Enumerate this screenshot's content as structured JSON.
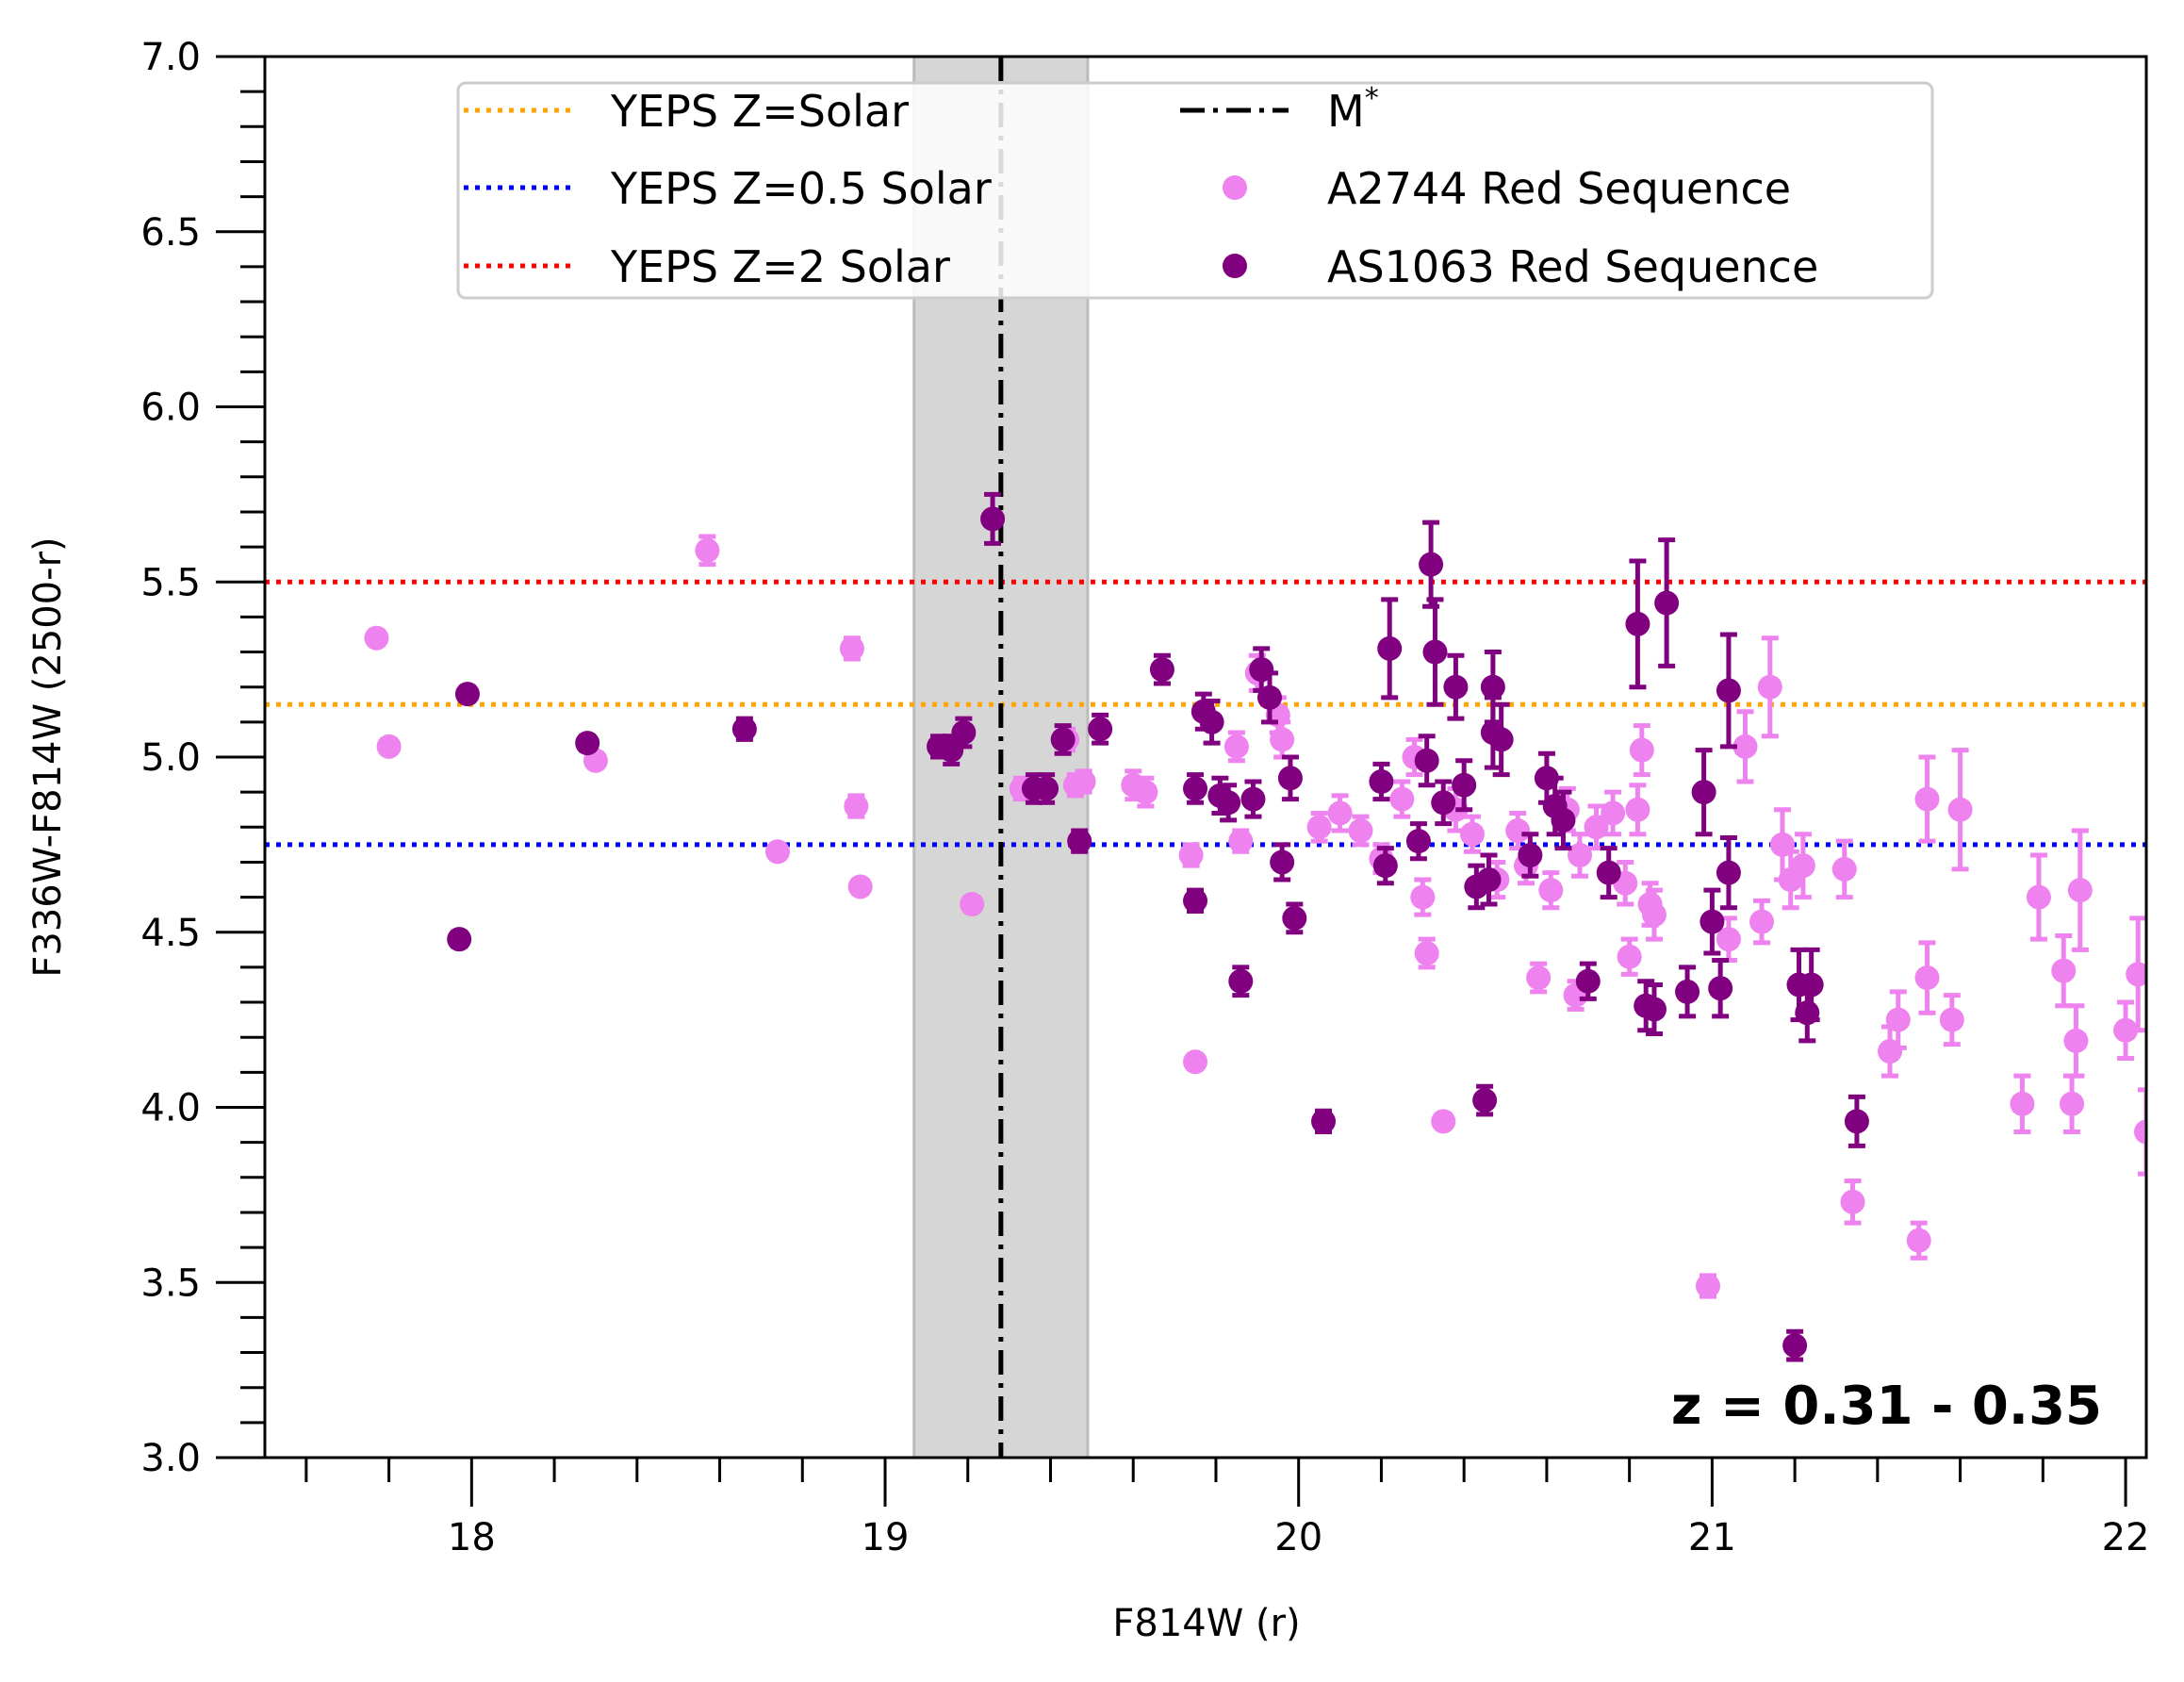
{
  "chart_data": {
    "type": "scatter",
    "xlabel": "F814W (r)",
    "ylabel": "F336W-F814W (2500-r)",
    "xlim": [
      17.5,
      22.05
    ],
    "ylim": [
      3.0,
      7.0
    ],
    "xticks": [
      18,
      19,
      20,
      21,
      22
    ],
    "xtick_labels": [
      "18",
      "19",
      "20",
      "21",
      "22"
    ],
    "yticks": [
      3.0,
      3.5,
      4.0,
      4.5,
      5.0,
      5.5,
      6.0,
      6.5,
      7.0
    ],
    "ytick_labels": [
      "3.0",
      "3.5",
      "4.0",
      "4.5",
      "5.0",
      "5.5",
      "6.0",
      "6.5",
      "7.0"
    ],
    "annotation": "z = 0.31 - 0.35",
    "legend_position": "top-center",
    "hlines": [
      {
        "name": "YEPS Z=Solar",
        "y": 5.15,
        "color": "#ffa500"
      },
      {
        "name": "YEPS Z=0.5 Solar",
        "y": 4.75,
        "color": "#0000ff"
      },
      {
        "name": "YEPS Z=2 Solar",
        "y": 5.5,
        "color": "#ff0000"
      }
    ],
    "vline": {
      "name": "M*",
      "x": 19.28,
      "color": "#000000"
    },
    "vband": {
      "x": [
        19.07,
        19.49
      ],
      "color": "#d6d6d6"
    },
    "series": [
      {
        "name": "A2744 Red Sequence",
        "color": "#ee82ee",
        "points": [
          [
            17.77,
            5.34,
            0.02
          ],
          [
            17.8,
            5.03,
            0.02
          ],
          [
            18.3,
            4.99,
            0.02
          ],
          [
            18.57,
            5.59,
            0.04
          ],
          [
            18.74,
            4.73,
            0.02
          ],
          [
            18.92,
            5.31,
            0.03
          ],
          [
            18.93,
            4.86,
            0.03
          ],
          [
            18.94,
            4.63,
            0.02
          ],
          [
            19.21,
            4.58,
            0.02
          ],
          [
            19.33,
            4.91,
            0.03
          ],
          [
            19.44,
            5.05,
            0.03
          ],
          [
            19.46,
            4.92,
            0.03
          ],
          [
            19.48,
            4.93,
            0.03
          ],
          [
            19.6,
            4.92,
            0.04
          ],
          [
            19.63,
            4.9,
            0.04
          ],
          [
            19.74,
            4.72,
            0.03
          ],
          [
            19.75,
            4.13,
            0.02
          ],
          [
            19.85,
            5.03,
            0.04
          ],
          [
            19.86,
            4.76,
            0.03
          ],
          [
            19.9,
            5.24,
            0.05
          ],
          [
            19.95,
            5.12,
            0.05
          ],
          [
            19.96,
            5.05,
            0.05
          ],
          [
            20.05,
            4.8,
            0.04
          ],
          [
            20.1,
            4.84,
            0.05
          ],
          [
            20.15,
            4.79,
            0.04
          ],
          [
            20.2,
            4.71,
            0.04
          ],
          [
            20.25,
            4.88,
            0.05
          ],
          [
            20.28,
            5.0,
            0.05
          ],
          [
            20.3,
            4.6,
            0.05
          ],
          [
            20.31,
            4.44,
            0.04
          ],
          [
            20.35,
            3.96,
            0.02
          ],
          [
            20.38,
            4.85,
            0.06
          ],
          [
            20.42,
            4.78,
            0.05
          ],
          [
            20.48,
            4.65,
            0.05
          ],
          [
            20.53,
            4.79,
            0.05
          ],
          [
            20.55,
            4.69,
            0.05
          ],
          [
            20.58,
            4.37,
            0.04
          ],
          [
            20.61,
            4.62,
            0.05
          ],
          [
            20.65,
            4.85,
            0.06
          ],
          [
            20.67,
            4.32,
            0.04
          ],
          [
            20.68,
            4.72,
            0.06
          ],
          [
            20.72,
            4.8,
            0.06
          ],
          [
            20.76,
            4.84,
            0.06
          ],
          [
            20.79,
            4.64,
            0.06
          ],
          [
            20.8,
            4.43,
            0.05
          ],
          [
            20.82,
            4.85,
            0.07
          ],
          [
            20.83,
            5.02,
            0.07
          ],
          [
            20.85,
            4.58,
            0.06
          ],
          [
            20.86,
            4.55,
            0.07
          ],
          [
            20.99,
            3.49,
            0.03
          ],
          [
            21.04,
            4.48,
            0.06
          ],
          [
            21.08,
            5.03,
            0.1
          ],
          [
            21.12,
            4.53,
            0.06
          ],
          [
            21.14,
            5.2,
            0.14
          ],
          [
            21.17,
            4.75,
            0.1
          ],
          [
            21.19,
            4.65,
            0.08
          ],
          [
            21.22,
            4.69,
            0.09
          ],
          [
            21.32,
            4.68,
            0.08
          ],
          [
            21.34,
            3.73,
            0.06
          ],
          [
            21.43,
            4.16,
            0.07
          ],
          [
            21.45,
            4.25,
            0.08
          ],
          [
            21.5,
            3.62,
            0.05
          ],
          [
            21.52,
            4.37,
            0.1
          ],
          [
            21.52,
            4.88,
            0.12
          ],
          [
            21.58,
            4.25,
            0.07
          ],
          [
            21.6,
            4.85,
            0.17
          ],
          [
            21.75,
            4.01,
            0.08
          ],
          [
            21.79,
            4.6,
            0.12
          ],
          [
            21.85,
            4.39,
            0.1
          ],
          [
            21.87,
            4.01,
            0.08
          ],
          [
            21.88,
            4.19,
            0.1
          ],
          [
            21.89,
            4.62,
            0.17
          ],
          [
            22.0,
            4.22,
            0.08
          ],
          [
            22.03,
            4.38,
            0.16
          ],
          [
            22.05,
            3.93,
            0.12
          ]
        ]
      },
      {
        "name": "AS1063 Red Sequence",
        "color": "#800080",
        "points": [
          [
            17.97,
            4.48,
            0.02
          ],
          [
            17.99,
            5.18,
            0.02
          ],
          [
            18.28,
            5.04,
            0.02
          ],
          [
            18.66,
            5.08,
            0.03
          ],
          [
            19.13,
            5.03,
            0.03
          ],
          [
            19.16,
            5.02,
            0.04
          ],
          [
            19.19,
            5.07,
            0.04
          ],
          [
            19.26,
            5.68,
            0.07
          ],
          [
            19.36,
            4.91,
            0.04
          ],
          [
            19.39,
            4.91,
            0.04
          ],
          [
            19.43,
            5.05,
            0.04
          ],
          [
            19.47,
            4.76,
            0.03
          ],
          [
            19.52,
            5.08,
            0.04
          ],
          [
            19.67,
            5.25,
            0.04
          ],
          [
            19.75,
            4.59,
            0.03
          ],
          [
            19.75,
            4.91,
            0.04
          ],
          [
            19.77,
            5.13,
            0.05
          ],
          [
            19.79,
            5.1,
            0.06
          ],
          [
            19.81,
            4.89,
            0.05
          ],
          [
            19.83,
            4.87,
            0.05
          ],
          [
            19.86,
            4.36,
            0.04
          ],
          [
            19.89,
            4.88,
            0.05
          ],
          [
            19.91,
            5.25,
            0.06
          ],
          [
            19.93,
            5.17,
            0.07
          ],
          [
            19.96,
            4.7,
            0.05
          ],
          [
            19.98,
            4.94,
            0.06
          ],
          [
            19.99,
            4.54,
            0.04
          ],
          [
            20.06,
            3.96,
            0.03
          ],
          [
            20.2,
            4.93,
            0.05
          ],
          [
            20.21,
            4.69,
            0.05
          ],
          [
            20.22,
            5.31,
            0.14
          ],
          [
            20.29,
            4.76,
            0.05
          ],
          [
            20.31,
            4.99,
            0.07
          ],
          [
            20.32,
            5.55,
            0.12
          ],
          [
            20.33,
            5.3,
            0.15
          ],
          [
            20.35,
            4.87,
            0.06
          ],
          [
            20.38,
            5.2,
            0.09
          ],
          [
            20.4,
            4.92,
            0.07
          ],
          [
            20.43,
            4.63,
            0.06
          ],
          [
            20.45,
            4.02,
            0.04
          ],
          [
            20.46,
            4.65,
            0.07
          ],
          [
            20.47,
            5.2,
            0.1
          ],
          [
            20.47,
            5.07,
            0.1
          ],
          [
            20.49,
            5.05,
            0.1
          ],
          [
            20.56,
            4.72,
            0.06
          ],
          [
            20.6,
            4.94,
            0.07
          ],
          [
            20.62,
            4.86,
            0.08
          ],
          [
            20.64,
            4.82,
            0.08
          ],
          [
            20.7,
            4.36,
            0.05
          ],
          [
            20.75,
            4.67,
            0.07
          ],
          [
            20.82,
            5.38,
            0.18
          ],
          [
            20.84,
            4.29,
            0.07
          ],
          [
            20.86,
            4.28,
            0.07
          ],
          [
            20.89,
            5.44,
            0.18
          ],
          [
            20.94,
            4.33,
            0.07
          ],
          [
            20.98,
            4.9,
            0.12
          ],
          [
            21.0,
            4.53,
            0.09
          ],
          [
            21.02,
            4.34,
            0.08
          ],
          [
            21.04,
            4.67,
            0.1
          ],
          [
            21.04,
            5.19,
            0.16
          ],
          [
            21.2,
            3.32,
            0.04
          ],
          [
            21.21,
            4.35,
            0.1
          ],
          [
            21.23,
            4.27,
            0.08
          ],
          [
            21.24,
            4.35,
            0.1
          ],
          [
            21.35,
            3.96,
            0.07
          ]
        ]
      }
    ]
  },
  "legend": {
    "items": [
      {
        "label": "YEPS Z=Solar",
        "kind": "hline-orange"
      },
      {
        "label": "YEPS Z=0.5 Solar",
        "kind": "hline-blue"
      },
      {
        "label": "YEPS Z=2 Solar",
        "kind": "hline-red"
      },
      {
        "label": "M",
        "kind": "vline"
      },
      {
        "label": "A2744 Red Sequence",
        "kind": "marker-violet"
      },
      {
        "label": "AS1063 Red Sequence",
        "kind": "marker-purple"
      }
    ],
    "mstar_superscript": "*"
  }
}
